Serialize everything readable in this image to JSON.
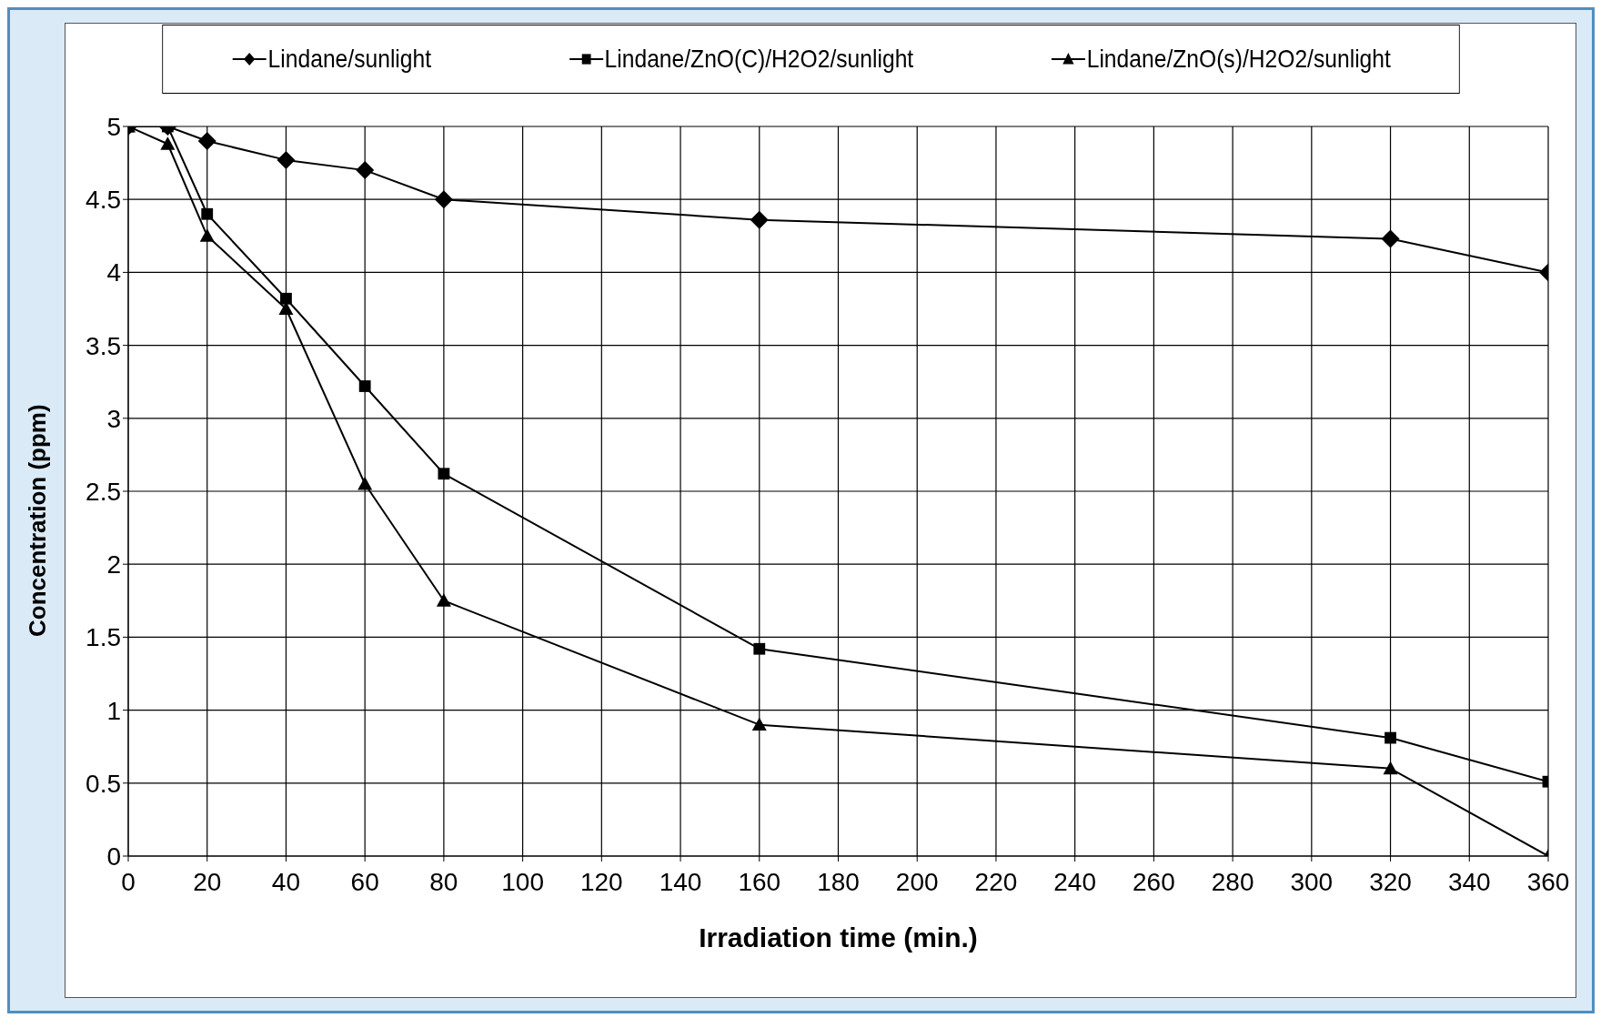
{
  "chart_data": {
    "type": "line",
    "xlabel": "Irradiation time (min.)",
    "ylabel": "Concentration (ppm)",
    "x": [
      0,
      10,
      20,
      40,
      60,
      80,
      160,
      320,
      360
    ],
    "series": [
      {
        "name": "Lindane/sunlight",
        "color": "#000000",
        "marker": "diamond",
        "values": [
          5,
          5,
          4.9,
          4.77,
          4.7,
          4.5,
          4.36,
          4.23,
          4.0
        ]
      },
      {
        "name": "Lindane/ZnO(C)/H2O2/sunlight",
        "color": "#000000",
        "marker": "square",
        "values": [
          5,
          5,
          4.4,
          3.82,
          3.22,
          2.62,
          1.42,
          0.81,
          0.51
        ]
      },
      {
        "name": "Lindane/ZnO(s)/H2O2/sunlight",
        "color": "#000000",
        "marker": "triangle",
        "values": [
          5,
          4.88,
          4.25,
          3.75,
          2.55,
          1.75,
          0.9,
          0.6,
          0.0
        ]
      }
    ],
    "xlim": [
      0,
      360
    ],
    "xticks": [
      0,
      20,
      40,
      60,
      80,
      100,
      120,
      140,
      160,
      180,
      200,
      220,
      240,
      260,
      280,
      300,
      320,
      340,
      360
    ],
    "ylim": [
      0,
      5
    ],
    "yticks": [
      0,
      0.5,
      1,
      1.5,
      2,
      2.5,
      3,
      3.5,
      4,
      4.5,
      5
    ],
    "grid": true,
    "legend": "top",
    "line_style": "solid"
  }
}
